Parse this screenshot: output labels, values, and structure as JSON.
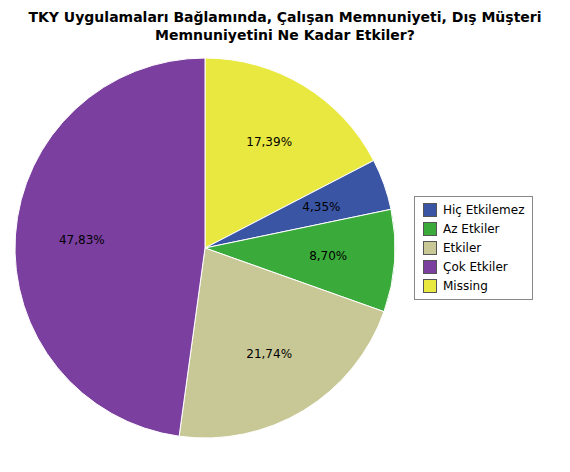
{
  "chart_data": {
    "type": "pie",
    "title": "TKY Uygulamaları Bağlamında, Çalışan Memnuniyeti, Dış Müşteri\nMemnuniyetini Ne Kadar Etkiler?",
    "categories": [
      "Missing",
      "Hiç Etkilemez",
      "Az Etkiler",
      "Etkiler",
      "Çok Etkiler"
    ],
    "values": [
      17.39,
      4.35,
      8.7,
      21.74,
      47.83
    ],
    "value_labels": [
      "17,39%",
      "4,35%",
      "8,70%",
      "21,74%",
      "47,83%"
    ],
    "colors": [
      "#e8e840",
      "#3a55a4",
      "#3aaa3a",
      "#c8c896",
      "#7b3fa0"
    ],
    "legend_labels": [
      "Hiç Etkilemez",
      "Az Etkiler",
      "Etkiler",
      "Çok Etkiler",
      "Missing"
    ],
    "legend": "right",
    "data_labels": true
  }
}
